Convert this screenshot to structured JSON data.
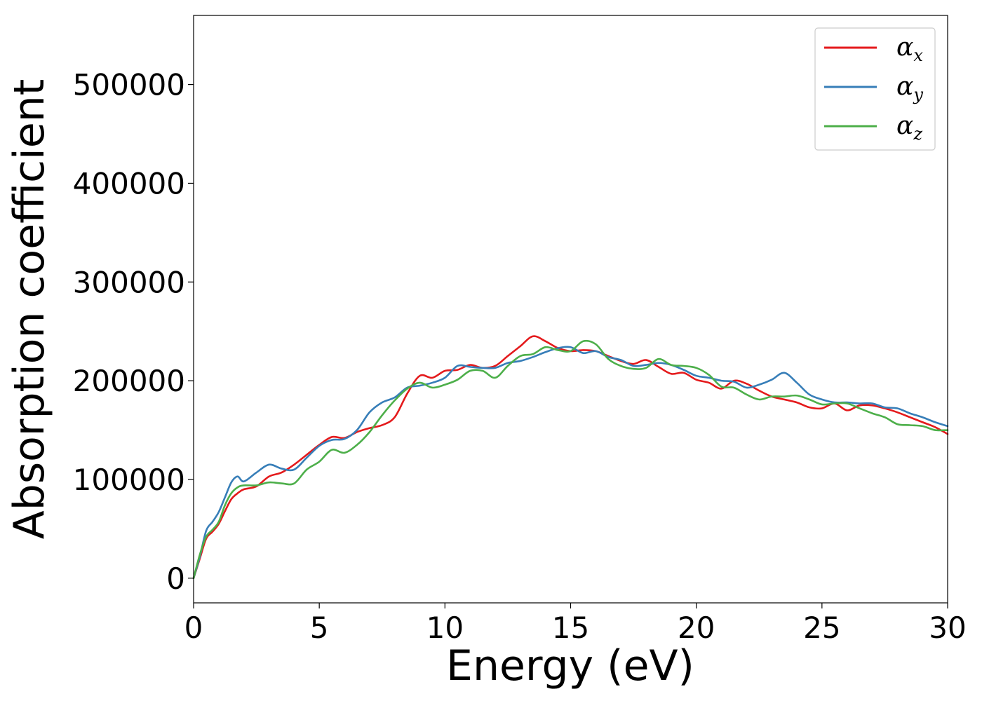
{
  "chart_data": {
    "type": "line",
    "title": "",
    "xlabel": "Energy (eV)",
    "ylabel": "Absorption coefficient",
    "xlim": [
      0,
      30
    ],
    "ylim": [
      -25000,
      570000
    ],
    "xticks": [
      0,
      5,
      10,
      15,
      20,
      25,
      30
    ],
    "yticks": [
      0,
      100000,
      200000,
      300000,
      400000,
      500000
    ],
    "xtick_labels": [
      "0",
      "5",
      "10",
      "15",
      "20",
      "25",
      "30"
    ],
    "ytick_labels": [
      "0",
      "100000",
      "200000",
      "300000",
      "400000",
      "500000"
    ],
    "grid": false,
    "legend_position": "top-right",
    "series": [
      {
        "name": "α_x",
        "legend_base": "α",
        "legend_sub": "x",
        "color": "#e41a1c",
        "points": [
          [
            0,
            0
          ],
          [
            0.25,
            20000
          ],
          [
            0.5,
            40000
          ],
          [
            0.75,
            47000
          ],
          [
            1.0,
            55000
          ],
          [
            1.25,
            68000
          ],
          [
            1.5,
            80000
          ],
          [
            1.75,
            86000
          ],
          [
            2.0,
            90000
          ],
          [
            2.5,
            93000
          ],
          [
            3.0,
            103000
          ],
          [
            3.5,
            107000
          ],
          [
            4.0,
            115000
          ],
          [
            4.5,
            125000
          ],
          [
            5.0,
            135000
          ],
          [
            5.5,
            143000
          ],
          [
            6.0,
            142000
          ],
          [
            6.5,
            148000
          ],
          [
            7.0,
            152000
          ],
          [
            7.5,
            155000
          ],
          [
            8.0,
            163000
          ],
          [
            8.5,
            187000
          ],
          [
            9.0,
            205000
          ],
          [
            9.5,
            203000
          ],
          [
            10.0,
            210000
          ],
          [
            10.5,
            211000
          ],
          [
            11.0,
            216000
          ],
          [
            11.5,
            213000
          ],
          [
            12.0,
            215000
          ],
          [
            12.5,
            225000
          ],
          [
            13.0,
            235000
          ],
          [
            13.5,
            245000
          ],
          [
            14.0,
            240000
          ],
          [
            14.5,
            233000
          ],
          [
            15.0,
            230000
          ],
          [
            15.5,
            231000
          ],
          [
            16.0,
            230000
          ],
          [
            16.5,
            225000
          ],
          [
            17.0,
            220000
          ],
          [
            17.5,
            217000
          ],
          [
            18.0,
            221000
          ],
          [
            18.5,
            214000
          ],
          [
            19.0,
            207000
          ],
          [
            19.5,
            208000
          ],
          [
            20.0,
            201000
          ],
          [
            20.5,
            198000
          ],
          [
            21.0,
            192000
          ],
          [
            21.5,
            200000
          ],
          [
            22.0,
            197000
          ],
          [
            22.5,
            190000
          ],
          [
            23.0,
            184000
          ],
          [
            23.5,
            181000
          ],
          [
            24.0,
            178000
          ],
          [
            24.5,
            173000
          ],
          [
            25.0,
            172000
          ],
          [
            25.5,
            177000
          ],
          [
            26.0,
            170000
          ],
          [
            26.5,
            175000
          ],
          [
            27.0,
            175000
          ],
          [
            27.5,
            172000
          ],
          [
            28.0,
            168000
          ],
          [
            28.5,
            163000
          ],
          [
            29.0,
            158000
          ],
          [
            29.5,
            153000
          ],
          [
            30.0,
            146000
          ]
        ]
      },
      {
        "name": "α_y",
        "legend_base": "α",
        "legend_sub": "y",
        "color": "#377eb8",
        "points": [
          [
            0,
            0
          ],
          [
            0.25,
            22000
          ],
          [
            0.5,
            48000
          ],
          [
            0.75,
            57000
          ],
          [
            1.0,
            67000
          ],
          [
            1.25,
            82000
          ],
          [
            1.5,
            97000
          ],
          [
            1.75,
            103000
          ],
          [
            2.0,
            98000
          ],
          [
            2.5,
            107000
          ],
          [
            3.0,
            115000
          ],
          [
            3.5,
            111000
          ],
          [
            4.0,
            110000
          ],
          [
            4.5,
            122000
          ],
          [
            5.0,
            134000
          ],
          [
            5.5,
            140000
          ],
          [
            6.0,
            141000
          ],
          [
            6.5,
            150000
          ],
          [
            7.0,
            168000
          ],
          [
            7.5,
            178000
          ],
          [
            8.0,
            183000
          ],
          [
            8.5,
            193000
          ],
          [
            9.0,
            195000
          ],
          [
            9.5,
            198000
          ],
          [
            10.0,
            203000
          ],
          [
            10.5,
            215000
          ],
          [
            11.0,
            214000
          ],
          [
            11.5,
            213000
          ],
          [
            12.0,
            213000
          ],
          [
            12.5,
            218000
          ],
          [
            13.0,
            220000
          ],
          [
            13.5,
            224000
          ],
          [
            14.0,
            229000
          ],
          [
            14.5,
            233000
          ],
          [
            15.0,
            234000
          ],
          [
            15.5,
            228000
          ],
          [
            16.0,
            230000
          ],
          [
            16.5,
            224000
          ],
          [
            17.0,
            221000
          ],
          [
            17.5,
            215000
          ],
          [
            18.0,
            216000
          ],
          [
            18.5,
            218000
          ],
          [
            19.0,
            216000
          ],
          [
            19.5,
            211000
          ],
          [
            20.0,
            205000
          ],
          [
            20.5,
            203000
          ],
          [
            21.0,
            200000
          ],
          [
            21.5,
            199000
          ],
          [
            22.0,
            193000
          ],
          [
            22.5,
            196000
          ],
          [
            23.0,
            201000
          ],
          [
            23.5,
            208000
          ],
          [
            24.0,
            198000
          ],
          [
            24.5,
            186000
          ],
          [
            25.0,
            181000
          ],
          [
            25.5,
            178000
          ],
          [
            26.0,
            178000
          ],
          [
            26.5,
            177000
          ],
          [
            27.0,
            177000
          ],
          [
            27.5,
            173000
          ],
          [
            28.0,
            172000
          ],
          [
            28.5,
            167000
          ],
          [
            29.0,
            163000
          ],
          [
            29.5,
            158000
          ],
          [
            30.0,
            154000
          ]
        ]
      },
      {
        "name": "α_z",
        "legend_base": "α",
        "legend_sub": "z",
        "color": "#4daf4a",
        "points": [
          [
            0,
            0
          ],
          [
            0.25,
            24000
          ],
          [
            0.5,
            42000
          ],
          [
            0.75,
            49000
          ],
          [
            1.0,
            57000
          ],
          [
            1.25,
            74000
          ],
          [
            1.5,
            86000
          ],
          [
            1.75,
            92000
          ],
          [
            2.0,
            94000
          ],
          [
            2.5,
            94000
          ],
          [
            3.0,
            97000
          ],
          [
            3.5,
            96000
          ],
          [
            4.0,
            96000
          ],
          [
            4.5,
            110000
          ],
          [
            5.0,
            118000
          ],
          [
            5.5,
            130000
          ],
          [
            6.0,
            127000
          ],
          [
            6.5,
            135000
          ],
          [
            7.0,
            148000
          ],
          [
            7.5,
            165000
          ],
          [
            8.0,
            180000
          ],
          [
            8.5,
            192000
          ],
          [
            9.0,
            198000
          ],
          [
            9.5,
            193000
          ],
          [
            10.0,
            196000
          ],
          [
            10.5,
            201000
          ],
          [
            11.0,
            210000
          ],
          [
            11.5,
            210000
          ],
          [
            12.0,
            203000
          ],
          [
            12.5,
            215000
          ],
          [
            13.0,
            225000
          ],
          [
            13.5,
            227000
          ],
          [
            14.0,
            234000
          ],
          [
            14.5,
            231000
          ],
          [
            15.0,
            230000
          ],
          [
            15.5,
            240000
          ],
          [
            16.0,
            237000
          ],
          [
            16.5,
            222000
          ],
          [
            17.0,
            215000
          ],
          [
            17.5,
            212000
          ],
          [
            18.0,
            213000
          ],
          [
            18.5,
            222000
          ],
          [
            19.0,
            216000
          ],
          [
            19.5,
            215000
          ],
          [
            20.0,
            213000
          ],
          [
            20.5,
            206000
          ],
          [
            21.0,
            194000
          ],
          [
            21.5,
            193000
          ],
          [
            22.0,
            186000
          ],
          [
            22.5,
            181000
          ],
          [
            23.0,
            184000
          ],
          [
            23.5,
            184000
          ],
          [
            24.0,
            185000
          ],
          [
            24.5,
            181000
          ],
          [
            25.0,
            176000
          ],
          [
            25.5,
            177000
          ],
          [
            26.0,
            177000
          ],
          [
            26.5,
            172000
          ],
          [
            27.0,
            167000
          ],
          [
            27.5,
            163000
          ],
          [
            28.0,
            156000
          ],
          [
            28.5,
            155000
          ],
          [
            29.0,
            154000
          ],
          [
            29.5,
            150000
          ],
          [
            30.0,
            150000
          ]
        ]
      }
    ]
  }
}
